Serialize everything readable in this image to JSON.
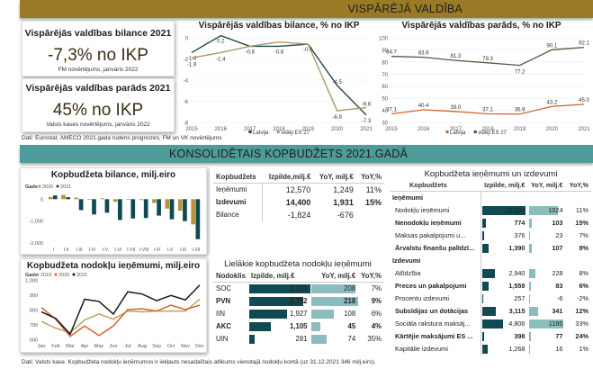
{
  "banners": {
    "general_government": "VISPĀRĒJĀ VALDĪBA",
    "consolidated_budget": "KONSOLIDĒTAIS KOPBUDŽETS 2021.GADĀ"
  },
  "kpis": [
    {
      "title": "Vispārējās valdības bilance 2021",
      "value": "-7,3% no IKP",
      "note": "FM novērtējums, janvāris 2022"
    },
    {
      "title": "Vispārējās valdības parāds 2021",
      "value": "45% no IKP",
      "note": "Valsts kases novērtējums, janvāris 2022"
    }
  ],
  "sources": {
    "top": "Dati: Eurostat, AMECO 2021.gada rudens prognozes, FM un VK novērtējums",
    "bottom": "Dati: Valsts kase. Kopbudžeta nodokļu ieņēmumos ir iekļauts nesadalītais atlikums vienotajā nodokļu kontā (uz 31.12.2021 346 milj.eiro)."
  },
  "colors": {
    "gold": "#9a7a25",
    "teal_banner": "#4f9b99",
    "dark_teal": "#0f4a52",
    "light_teal": "#8bbcbe",
    "khaki": "#a89a6a",
    "orange": "#d4622a",
    "black": "#1a1a1a"
  },
  "chart_data": [
    {
      "id": "balance",
      "type": "line",
      "title": "Vispārējās valdības bilance, % no IKP",
      "x": [
        "2015",
        "2016",
        "2017",
        "2018",
        "2019",
        "2020",
        "2021"
      ],
      "ylim": [
        -8,
        0
      ],
      "yticks": [
        0,
        -2,
        -4,
        -6,
        -8
      ],
      "series": [
        {
          "name": "Latvija",
          "color": "#1d4a4c",
          "values": [
            -1.4,
            0.2,
            -0.8,
            -0.8,
            -0.6,
            -4.5,
            -7.3
          ],
          "labels": true
        },
        {
          "name": "vidēji ES 27",
          "color": "#a89a6a",
          "values": [
            -1.9,
            -1.4,
            -0.8,
            -0.4,
            -0.6,
            -6.9,
            -6.6
          ],
          "labels": true
        }
      ],
      "legend": "bottom"
    },
    {
      "id": "debt",
      "type": "line",
      "title": "Vispārējās valdības parāds, % no IKP",
      "x": [
        "2015",
        "2016",
        "2017",
        "2018",
        "2019",
        "2020",
        "2021"
      ],
      "ylim": [
        30,
        100
      ],
      "yticks": [
        100,
        90,
        80,
        70,
        60,
        50,
        40,
        30
      ],
      "series": [
        {
          "name": "Latvija",
          "color": "#d4622a",
          "values": [
            37.1,
            40.4,
            39.0,
            37.1,
            36.9,
            43.2,
            45.0
          ]
        },
        {
          "name": "vidēji ES 27",
          "color": "#5c5540",
          "values": [
            84.7,
            83.9,
            81.3,
            79.3,
            77.2,
            90.1,
            92.1
          ]
        }
      ],
      "legend": "bottom"
    },
    {
      "id": "budget_balance",
      "type": "bar",
      "title": "Kopbudžeta bilance, milj.eiro",
      "legend_title": "Gads",
      "categories": [
        "I",
        "I-II",
        "I-III",
        "I-IV",
        "I-V",
        "I-VI",
        "I-VII",
        "I-VIII",
        "I-IX",
        "I-X",
        "I-XI",
        "I-XII"
      ],
      "ylim": [
        -2000,
        300
      ],
      "yticks": [
        0,
        -1000,
        -2000
      ],
      "ytick_labels": [
        "0",
        "-1,000",
        "-2,000"
      ],
      "series": [
        {
          "name": "2020",
          "color": "#b8953a",
          "values": [
            100,
            200,
            70,
            -10,
            40,
            -120,
            -20,
            -40,
            -170,
            -430,
            -530,
            -1150
          ]
        },
        {
          "name": "2021",
          "color": "#0f4a52",
          "values": [
            170,
            90,
            -500,
            -700,
            -620,
            -950,
            -880,
            -860,
            -750,
            -920,
            -1000,
            -1824
          ]
        }
      ]
    },
    {
      "id": "tax_revenue",
      "type": "line",
      "title": "Kopbudžeta nodokļu ieņēmumi, milj.eiro",
      "legend_title": "Gads",
      "x": [
        "Jan",
        "Feb",
        "Mar",
        "Apr",
        "May",
        "Jun",
        "Jul",
        "Aug",
        "Sep",
        "Oct",
        "Nov",
        "Dec"
      ],
      "ylim": [
        600,
        1000
      ],
      "yticks": [
        1000,
        900,
        800,
        700,
        600
      ],
      "ytick_labels": [
        "1,000",
        "900",
        "800",
        "700",
        "600"
      ],
      "series": [
        {
          "name": "2019",
          "color": "#b7a46a",
          "values": [
            720,
            675,
            645,
            730,
            770,
            735,
            790,
            785,
            790,
            790,
            790,
            870
          ]
        },
        {
          "name": "2020",
          "color": "#d4622a",
          "values": [
            815,
            735,
            620,
            690,
            625,
            690,
            800,
            805,
            790,
            830,
            800,
            830
          ]
        },
        {
          "name": "2021",
          "color": "#1a1a1a",
          "values": [
            785,
            740,
            635,
            870,
            855,
            770,
            920,
            905,
            860,
            895,
            865,
            965
          ]
        }
      ]
    }
  ],
  "summary_table": {
    "headers": [
      "Kopbudžets",
      "Izpilde,milj.€",
      "YoY, milj.€",
      "YoY,%"
    ],
    "rows": [
      {
        "name": "Ieņēmumi",
        "exec": "12,570",
        "yoy": "1,249",
        "pct": "11%",
        "bold": false
      },
      {
        "name": "Izdevumi",
        "exec": "14,400",
        "yoy": "1,931",
        "pct": "15%",
        "bold": true
      },
      {
        "name": "Bilance",
        "exec": "-1,824",
        "yoy": "-676",
        "pct": "",
        "bold": false
      }
    ]
  },
  "tax_table": {
    "title": "Lielākie kopbudžeta nodokļu ieņēmumi",
    "headers": [
      "Nodoklis",
      "Izpilde, milj.€",
      "YoY, milj.€",
      "YoY,%"
    ],
    "rows": [
      {
        "name": "SOC",
        "exec": "3,121",
        "exec_val": 3121,
        "yoy": "208",
        "yoy_val": 208,
        "pct": "7%"
      },
      {
        "name": "PVN",
        "exec": "2,762",
        "exec_val": 2762,
        "yoy": "218",
        "yoy_val": 218,
        "pct": "9%"
      },
      {
        "name": "IIN",
        "exec": "1,927",
        "exec_val": 1927,
        "yoy": "108",
        "yoy_val": 108,
        "pct": "6%"
      },
      {
        "name": "AKC",
        "exec": "1,105",
        "exec_val": 1105,
        "yoy": "45",
        "yoy_val": 45,
        "pct": "4%"
      },
      {
        "name": "UIN",
        "exec": "281",
        "exec_val": 281,
        "yoy": "74",
        "yoy_val": 74,
        "pct": "35%"
      }
    ]
  },
  "detail_table": {
    "title": "Kopbudžeta ieņēmumi un izdevumi",
    "headers": [
      "Kopbudžets",
      "Izpilde, milj.€",
      "YoY, milj.€",
      "YoY,%"
    ],
    "sections": [
      {
        "name": "Ieņēmumi",
        "rows": [
          {
            "name": "Nodokļu ieņēmumi",
            "exec": "10,031",
            "exec_val": 10031,
            "yoy": "1024",
            "yoy_val": 1024,
            "pct": "11%"
          },
          {
            "name": "Nenodokļu ieņēmumi",
            "exec": "774",
            "exec_val": 774,
            "yoy": "103",
            "yoy_val": 103,
            "pct": "15%"
          },
          {
            "name": "Maksas pakalpojumi u...",
            "exec": "376",
            "exec_val": 376,
            "yoy": "23",
            "yoy_val": 23,
            "pct": "7%"
          },
          {
            "name": "Ārvalstu finanšu palīdzī...",
            "exec": "1,390",
            "exec_val": 1390,
            "yoy": "107",
            "yoy_val": 107,
            "pct": "8%"
          }
        ]
      },
      {
        "name": "Izdevumi",
        "rows": [
          {
            "name": "Atlīdzība",
            "exec": "2,940",
            "exec_val": 2940,
            "yoy": "228",
            "yoy_val": 228,
            "pct": "8%"
          },
          {
            "name": "Preces un pakalpojumi",
            "exec": "1,559",
            "exec_val": 1559,
            "yoy": "83",
            "yoy_val": 83,
            "pct": "6%"
          },
          {
            "name": "Procentu izdevumi",
            "exec": "257",
            "exec_val": 257,
            "yoy": "-6",
            "yoy_val": -6,
            "pct": "-2%"
          },
          {
            "name": "Subsīdijas un dotācijas",
            "exec": "3,115",
            "exec_val": 3115,
            "yoy": "341",
            "yoy_val": 341,
            "pct": "12%"
          },
          {
            "name": "Sociāla rakstura maksāj...",
            "exec": "4,806",
            "exec_val": 4806,
            "yoy": "1185",
            "yoy_val": 1185,
            "pct": "33%"
          },
          {
            "name": "Kārtējie maksājumi ES ...",
            "exec": "398",
            "exec_val": 398,
            "yoy": "77",
            "yoy_val": 77,
            "pct": "24%"
          },
          {
            "name": "Kapitālie izdevumi",
            "exec": "1,268",
            "exec_val": 1268,
            "yoy": "16",
            "yoy_val": 16,
            "pct": "1%"
          }
        ]
      }
    ]
  }
}
